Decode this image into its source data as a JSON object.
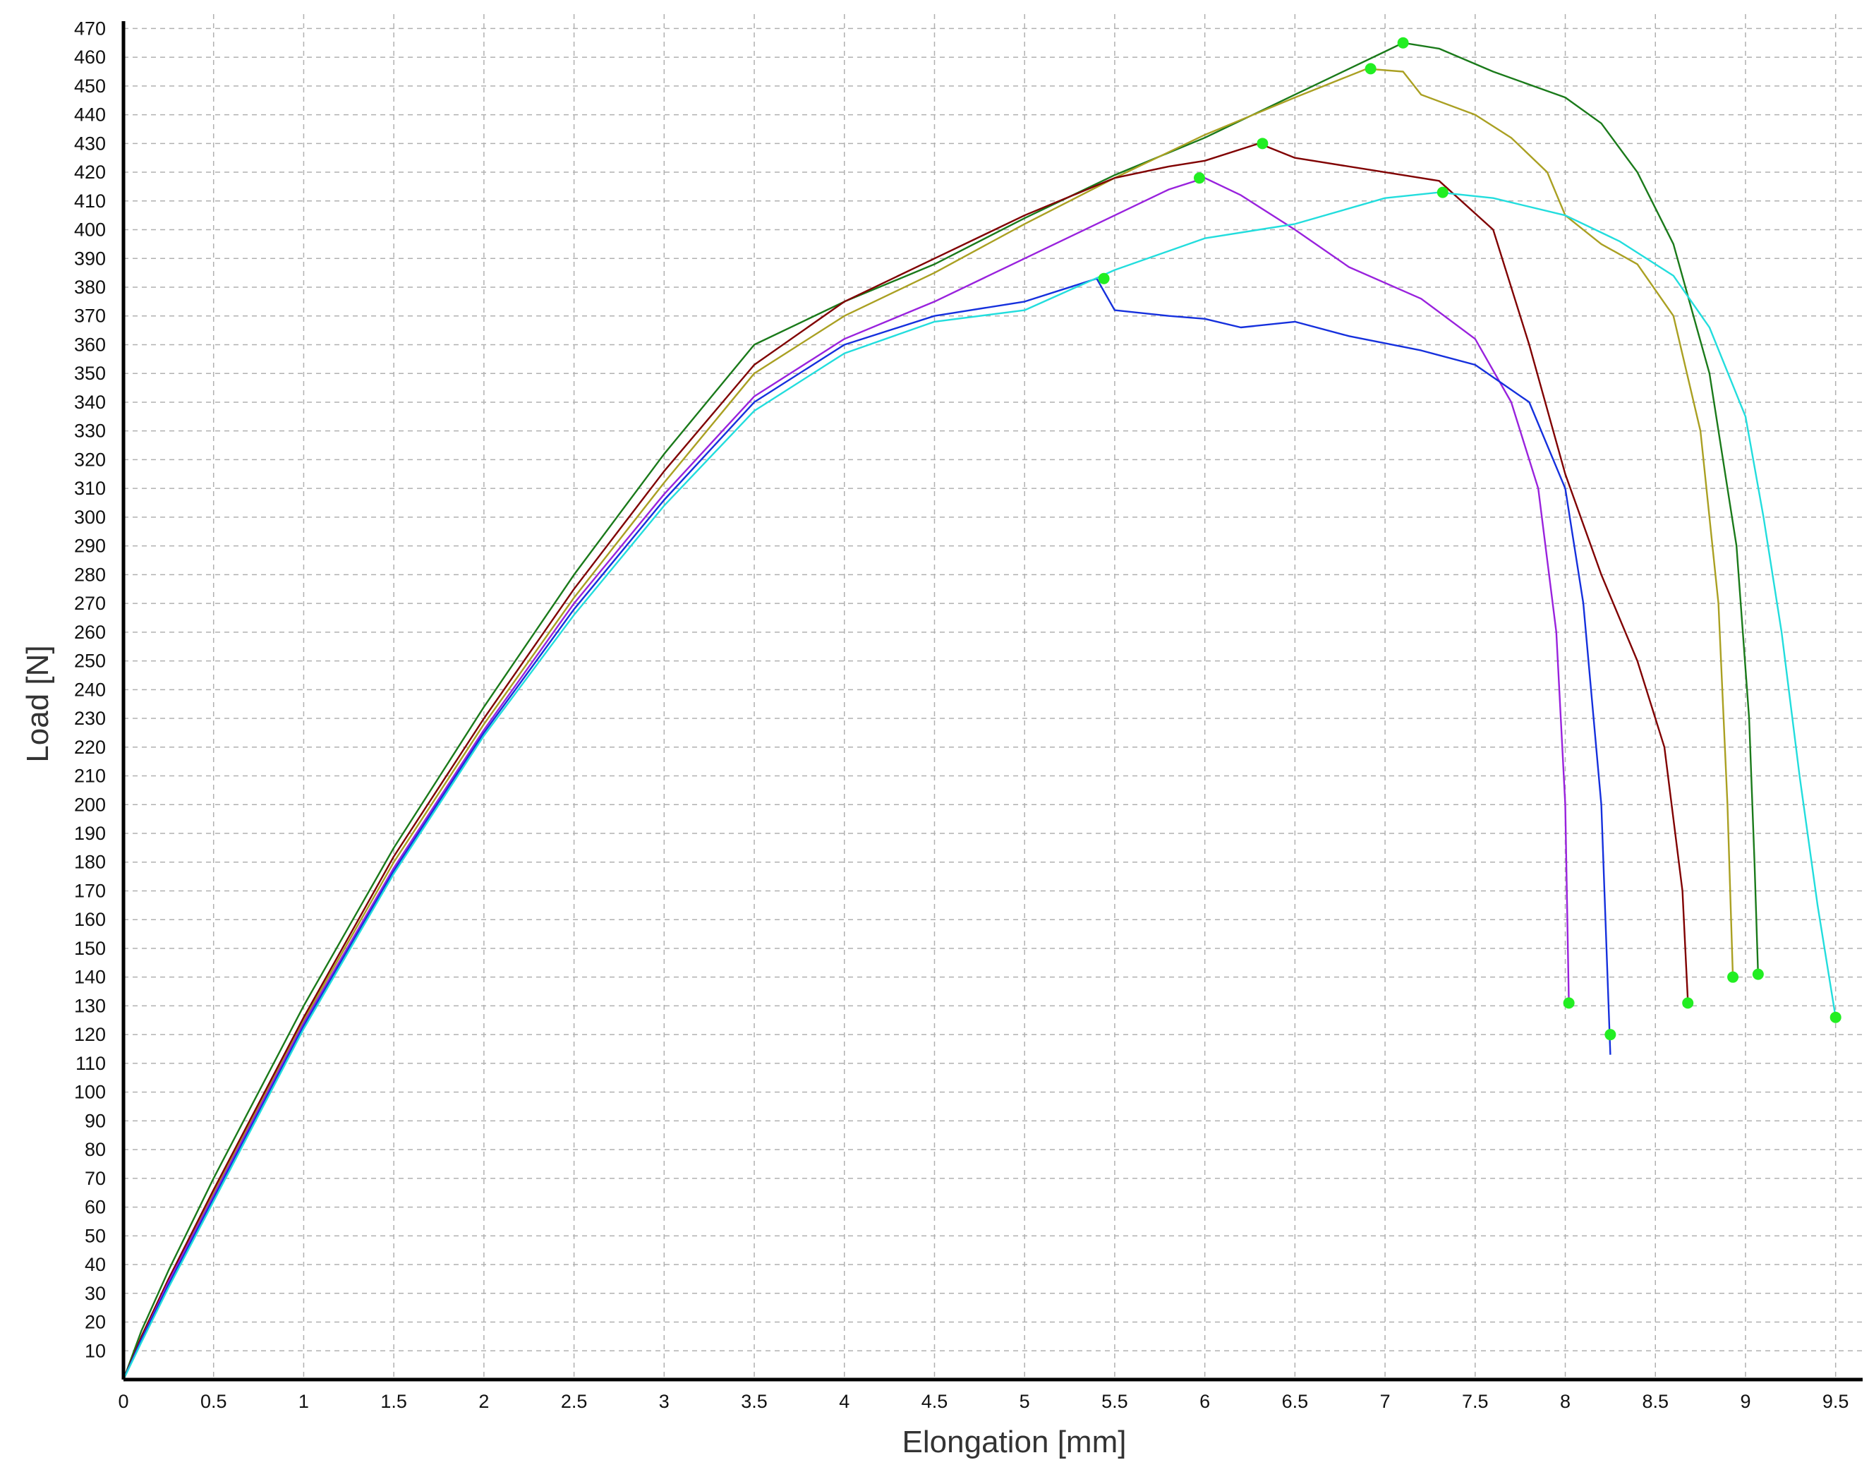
{
  "chart_data": {
    "type": "line",
    "xlabel": "Elongation [mm]",
    "ylabel": "Load [N]",
    "xlim": [
      0,
      9.65
    ],
    "ylim": [
      0,
      475
    ],
    "grid": true,
    "x_ticks": [
      "0",
      "0.5",
      "1",
      "1.5",
      "2",
      "2.5",
      "3",
      "3.5",
      "4",
      "4.5",
      "5",
      "5.5",
      "6",
      "6.5",
      "7",
      "7.5",
      "8",
      "8.5",
      "9",
      "9.5"
    ],
    "y_ticks": [
      "10",
      "20",
      "30",
      "40",
      "50",
      "60",
      "70",
      "80",
      "90",
      "100",
      "110",
      "120",
      "130",
      "140",
      "150",
      "160",
      "170",
      "180",
      "190",
      "200",
      "210",
      "220",
      "230",
      "240",
      "250",
      "260",
      "270",
      "280",
      "290",
      "300",
      "310",
      "320",
      "330",
      "340",
      "350",
      "360",
      "370",
      "380",
      "390",
      "400",
      "410",
      "420",
      "430",
      "440",
      "450",
      "460",
      "470"
    ],
    "marker_color": "#22ee22",
    "series": [
      {
        "color": "#1a7a1a",
        "points": [
          [
            0,
            0
          ],
          [
            0.1,
            17
          ],
          [
            0.25,
            38
          ],
          [
            0.5,
            70
          ],
          [
            1,
            130
          ],
          [
            1.5,
            185
          ],
          [
            2,
            234
          ],
          [
            2.5,
            280
          ],
          [
            3,
            322
          ],
          [
            3.5,
            360
          ],
          [
            4,
            375
          ],
          [
            4.5,
            388
          ],
          [
            5,
            404
          ],
          [
            5.5,
            419
          ],
          [
            6,
            432
          ],
          [
            6.5,
            447
          ],
          [
            7,
            462
          ],
          [
            7.1,
            465
          ],
          [
            7.3,
            463
          ],
          [
            7.6,
            455
          ],
          [
            8,
            446
          ],
          [
            8.2,
            437
          ],
          [
            8.4,
            420
          ],
          [
            8.6,
            395
          ],
          [
            8.8,
            350
          ],
          [
            8.95,
            290
          ],
          [
            9.02,
            230
          ],
          [
            9.05,
            180
          ],
          [
            9.07,
            141
          ]
        ],
        "markers": [
          [
            7.1,
            465
          ],
          [
            9.07,
            141
          ]
        ]
      },
      {
        "color": "#aaa022",
        "points": [
          [
            0,
            0
          ],
          [
            0.1,
            15
          ],
          [
            0.25,
            35
          ],
          [
            0.5,
            65
          ],
          [
            1,
            125
          ],
          [
            1.5,
            180
          ],
          [
            2,
            228
          ],
          [
            2.5,
            272
          ],
          [
            3,
            312
          ],
          [
            3.5,
            350
          ],
          [
            4,
            370
          ],
          [
            4.5,
            385
          ],
          [
            5,
            402
          ],
          [
            5.5,
            418
          ],
          [
            6,
            433
          ],
          [
            6.5,
            446
          ],
          [
            6.9,
            456
          ],
          [
            7.1,
            455
          ],
          [
            7.2,
            447
          ],
          [
            7.5,
            440
          ],
          [
            7.7,
            432
          ],
          [
            7.9,
            420
          ],
          [
            8,
            405
          ],
          [
            8.2,
            395
          ],
          [
            8.4,
            388
          ],
          [
            8.6,
            370
          ],
          [
            8.75,
            330
          ],
          [
            8.85,
            270
          ],
          [
            8.9,
            200
          ],
          [
            8.93,
            140
          ]
        ],
        "markers": [
          [
            6.92,
            456
          ],
          [
            8.93,
            140
          ]
        ]
      },
      {
        "color": "#800000",
        "points": [
          [
            0,
            0
          ],
          [
            0.1,
            15
          ],
          [
            0.25,
            35
          ],
          [
            0.5,
            66
          ],
          [
            1,
            126
          ],
          [
            1.5,
            182
          ],
          [
            2,
            230
          ],
          [
            2.5,
            275
          ],
          [
            3,
            316
          ],
          [
            3.5,
            353
          ],
          [
            4,
            375
          ],
          [
            4.5,
            390
          ],
          [
            5,
            405
          ],
          [
            5.5,
            418
          ],
          [
            5.8,
            422
          ],
          [
            6,
            424
          ],
          [
            6.3,
            430
          ],
          [
            6.5,
            425
          ],
          [
            7,
            420
          ],
          [
            7.3,
            417
          ],
          [
            7.6,
            400
          ],
          [
            7.8,
            360
          ],
          [
            8,
            315
          ],
          [
            8.2,
            280
          ],
          [
            8.4,
            250
          ],
          [
            8.55,
            220
          ],
          [
            8.65,
            170
          ],
          [
            8.68,
            132
          ]
        ],
        "markers": [
          [
            6.32,
            430
          ],
          [
            8.68,
            131
          ]
        ]
      },
      {
        "color": "#9922dd",
        "points": [
          [
            0,
            0
          ],
          [
            0.1,
            14
          ],
          [
            0.25,
            34
          ],
          [
            0.5,
            64
          ],
          [
            1,
            124
          ],
          [
            1.5,
            178
          ],
          [
            2,
            226
          ],
          [
            2.5,
            270
          ],
          [
            3,
            308
          ],
          [
            3.5,
            342
          ],
          [
            4,
            362
          ],
          [
            4.5,
            375
          ],
          [
            5,
            390
          ],
          [
            5.5,
            405
          ],
          [
            5.8,
            414
          ],
          [
            6,
            418
          ],
          [
            6.2,
            412
          ],
          [
            6.5,
            400
          ],
          [
            6.8,
            387
          ],
          [
            7.2,
            376
          ],
          [
            7.5,
            362
          ],
          [
            7.7,
            340
          ],
          [
            7.85,
            310
          ],
          [
            7.95,
            260
          ],
          [
            8,
            200
          ],
          [
            8.02,
            131
          ]
        ],
        "markers": [
          [
            5.97,
            418
          ],
          [
            8.02,
            131
          ]
        ]
      },
      {
        "color": "#1530dd",
        "points": [
          [
            0,
            0
          ],
          [
            0.1,
            14
          ],
          [
            0.25,
            33
          ],
          [
            0.5,
            63
          ],
          [
            1,
            123
          ],
          [
            1.5,
            177
          ],
          [
            2,
            225
          ],
          [
            2.5,
            268
          ],
          [
            3,
            306
          ],
          [
            3.5,
            340
          ],
          [
            4,
            360
          ],
          [
            4.5,
            370
          ],
          [
            5,
            375
          ],
          [
            5.4,
            383
          ],
          [
            5.5,
            372
          ],
          [
            5.8,
            370
          ],
          [
            6,
            369
          ],
          [
            6.2,
            366
          ],
          [
            6.5,
            368
          ],
          [
            6.8,
            363
          ],
          [
            7.2,
            358
          ],
          [
            7.5,
            353
          ],
          [
            7.8,
            340
          ],
          [
            8,
            310
          ],
          [
            8.1,
            270
          ],
          [
            8.2,
            200
          ],
          [
            8.25,
            113
          ]
        ],
        "markers": [
          [
            5.44,
            383
          ],
          [
            8.25,
            120
          ]
        ]
      },
      {
        "color": "#22dddd",
        "points": [
          [
            0,
            0
          ],
          [
            0.1,
            13
          ],
          [
            0.25,
            32
          ],
          [
            0.5,
            62
          ],
          [
            1,
            122
          ],
          [
            1.5,
            176
          ],
          [
            2,
            224
          ],
          [
            2.5,
            266
          ],
          [
            3,
            304
          ],
          [
            3.5,
            337
          ],
          [
            4,
            357
          ],
          [
            4.5,
            368
          ],
          [
            5,
            372
          ],
          [
            5.5,
            386
          ],
          [
            6,
            397
          ],
          [
            6.5,
            402
          ],
          [
            7,
            411
          ],
          [
            7.3,
            413
          ],
          [
            7.6,
            411
          ],
          [
            8,
            405
          ],
          [
            8.3,
            396
          ],
          [
            8.6,
            384
          ],
          [
            8.8,
            366
          ],
          [
            9,
            335
          ],
          [
            9.1,
            300
          ],
          [
            9.2,
            260
          ],
          [
            9.3,
            210
          ],
          [
            9.4,
            165
          ],
          [
            9.5,
            126
          ]
        ],
        "markers": [
          [
            7.32,
            413
          ],
          [
            9.5,
            126
          ]
        ]
      }
    ]
  }
}
